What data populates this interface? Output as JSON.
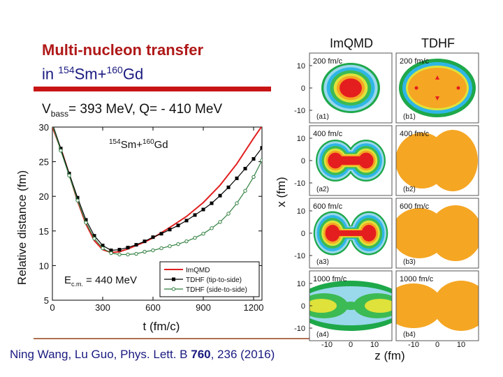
{
  "title_line1": "Multi-nucleon transfer",
  "title_line2_prefix": "in ",
  "title_mass1": "154",
  "title_el1": "Sm+",
  "title_mass2": "160",
  "title_el2": "Gd",
  "vbass_pre": "V",
  "vbass_sub": "bass",
  "vbass_post": "= 393 MeV, Q= - 410 MeV",
  "citation_pre": "Ning Wang, Lu Guo, Phys. Lett. B ",
  "citation_vol": "760",
  "citation_post": ", 236 (2016)",
  "panels": {
    "col_titles": [
      "ImQMD",
      "TDHF"
    ],
    "x_label": "z (fm)",
    "y_label": "x (fm)",
    "time_labels": [
      "200 fm/c",
      "400 fm/c",
      "600 fm/c",
      "1000 fm/c"
    ],
    "imqmd_tags": [
      "(a1)",
      "(a2)",
      "(a3)",
      "(a4)"
    ],
    "tdhf_tags": [
      "(b1)",
      "(b2)",
      "(b3)",
      "(b4)"
    ],
    "y_ticks": [
      "10",
      "0",
      "-10"
    ],
    "x_ticks": [
      "-10",
      "0",
      "10"
    ],
    "contour_colors": [
      "#1ea84a",
      "#9ad8ec",
      "#2fb6e6",
      "#3cba54",
      "#dfe23a",
      "#f5a623",
      "#e41e1e"
    ]
  },
  "chart_data": {
    "type": "line",
    "annotation": "154Sm+160Gd",
    "annotation_mass1": "154",
    "annotation_el1": "Sm+",
    "annotation_mass2": "160",
    "annotation_el2": "Gd",
    "energy_label": "E",
    "energy_sub": "c.m.",
    "energy_value": "= 440 MeV",
    "xlabel": "t (fm/c)",
    "ylabel": "Relative distance (fm)",
    "xlim": [
      0,
      1250
    ],
    "ylim": [
      5,
      30
    ],
    "x_ticks": [
      0,
      300,
      600,
      900,
      1200
    ],
    "y_ticks": [
      5,
      10,
      15,
      20,
      25,
      30
    ],
    "legend_position": "bottom-right",
    "series": [
      {
        "name": "ImQMD",
        "color": "#e02020",
        "marker": "none",
        "x": [
          0,
          60,
          100,
          150,
          200,
          250,
          300,
          350,
          400,
          450,
          500,
          550,
          600,
          700,
          800,
          900,
          1000,
          1100,
          1200,
          1260
        ],
        "y": [
          30,
          26.2,
          23.2,
          19.3,
          16.0,
          13.6,
          12.3,
          11.9,
          12.0,
          12.4,
          12.9,
          13.4,
          14.0,
          15.5,
          17.1,
          19.1,
          21.6,
          24.7,
          28.4,
          30.5
        ]
      },
      {
        "name": "TDHF (tip-to-side)",
        "color": "#000000",
        "marker": "square",
        "x": [
          0,
          50,
          100,
          150,
          200,
          250,
          300,
          350,
          400,
          450,
          500,
          550,
          600,
          650,
          700,
          750,
          800,
          850,
          900,
          950,
          1000,
          1050,
          1100,
          1150,
          1200,
          1250
        ],
        "y": [
          30.5,
          26.9,
          23.3,
          19.8,
          16.6,
          14.3,
          12.9,
          12.2,
          12.3,
          12.6,
          13.0,
          13.5,
          14.1,
          14.6,
          15.2,
          15.8,
          16.5,
          17.3,
          18.1,
          19.0,
          20.1,
          21.3,
          22.6,
          24.0,
          25.4,
          27.0
        ]
      },
      {
        "name": "TDHF (side-to-side)",
        "color": "#2f7f3f",
        "marker": "circle",
        "x": [
          0,
          50,
          100,
          150,
          200,
          250,
          300,
          350,
          400,
          450,
          500,
          550,
          600,
          650,
          700,
          750,
          800,
          850,
          900,
          950,
          1000,
          1050,
          1100,
          1150,
          1200,
          1250
        ],
        "y": [
          30.3,
          26.6,
          23.0,
          19.4,
          16.2,
          13.9,
          12.5,
          11.8,
          11.6,
          11.6,
          11.7,
          12.0,
          12.2,
          12.5,
          12.8,
          13.1,
          13.5,
          14.0,
          14.6,
          15.4,
          16.3,
          17.5,
          19.0,
          20.8,
          22.8,
          25.2
        ]
      }
    ]
  }
}
